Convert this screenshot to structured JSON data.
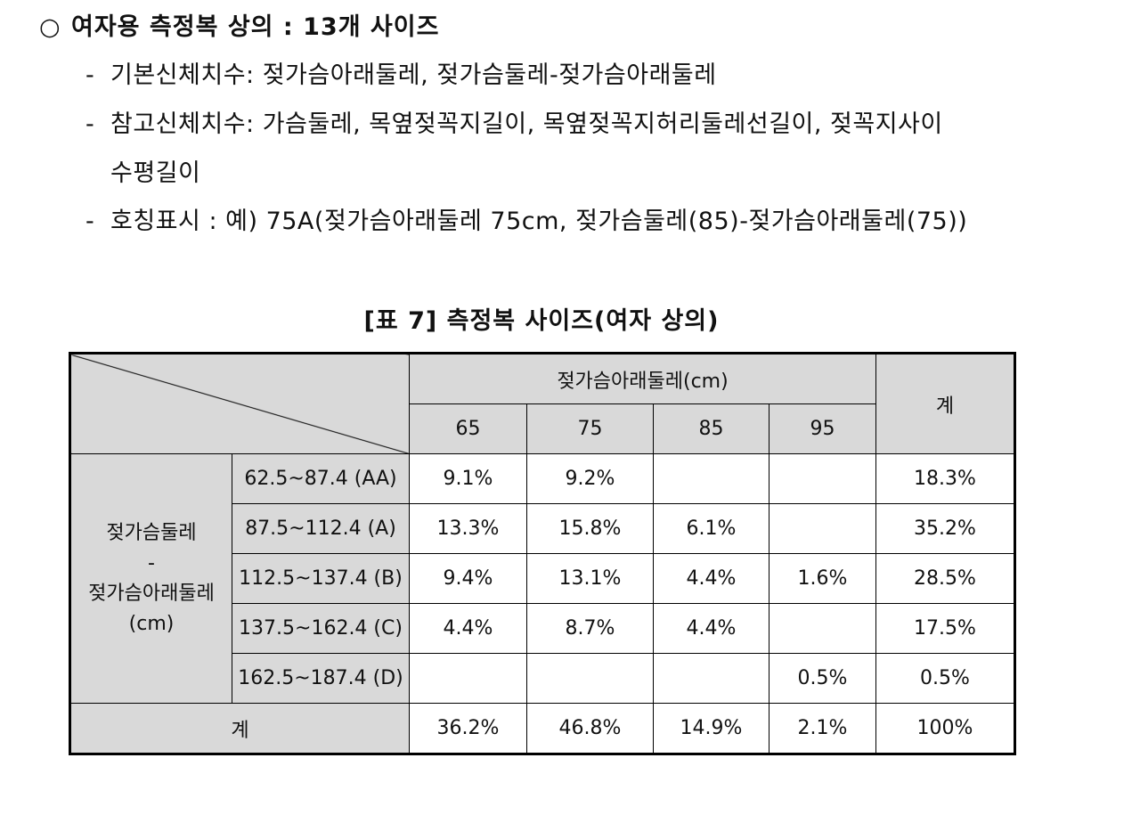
{
  "heading": {
    "bullet": "○",
    "text": "여자용 측정복 상의 : 13개 사이즈"
  },
  "items": [
    {
      "dash": "-",
      "text": "기본신체치수: 젖가슴아래둘레, 젖가슴둘레-젖가슴아래둘레"
    },
    {
      "dash": "-",
      "text": "참고신체치수: 가슴둘레, 목옆젖꼭지길이, 목옆젖꼭지허리둘레선길이, 젖꼭지사이",
      "continuation": "수평길이"
    },
    {
      "dash": "-",
      "text": "호칭표시 : 예) 75A(젖가슴아래둘레 75cm, 젖가슴둘레(85)-젖가슴아래둘레(75))"
    }
  ],
  "table": {
    "caption": "[표 7] 측정복 사이즈(여자 상의)",
    "col_group_label": "젖가슴아래둘레(cm)",
    "total_label": "계",
    "col_headers": [
      "65",
      "75",
      "85",
      "95"
    ],
    "row_group_label": {
      "line1": "젖가슴둘레",
      "line2": "-",
      "line3": "젖가슴아래둘레",
      "line4": "(cm)"
    },
    "rows": [
      {
        "label": "62.5~87.4 (AA)",
        "cells": [
          "9.1%",
          "9.2%",
          "",
          ""
        ],
        "total": "18.3%"
      },
      {
        "label": "87.5~112.4 (A)",
        "cells": [
          "13.3%",
          "15.8%",
          "6.1%",
          ""
        ],
        "total": "35.2%"
      },
      {
        "label": "112.5~137.4 (B)",
        "cells": [
          "9.4%",
          "13.1%",
          "4.4%",
          "1.6%"
        ],
        "total": "28.5%"
      },
      {
        "label": "137.5~162.4 (C)",
        "cells": [
          "4.4%",
          "8.7%",
          "4.4%",
          ""
        ],
        "total": "17.5%"
      },
      {
        "label": "162.5~187.4 (D)",
        "cells": [
          "",
          "",
          "",
          "0.5%"
        ],
        "total": "0.5%"
      }
    ],
    "footer": {
      "label": "계",
      "cells": [
        "36.2%",
        "46.8%",
        "14.9%",
        "2.1%"
      ],
      "total": "100%"
    }
  }
}
